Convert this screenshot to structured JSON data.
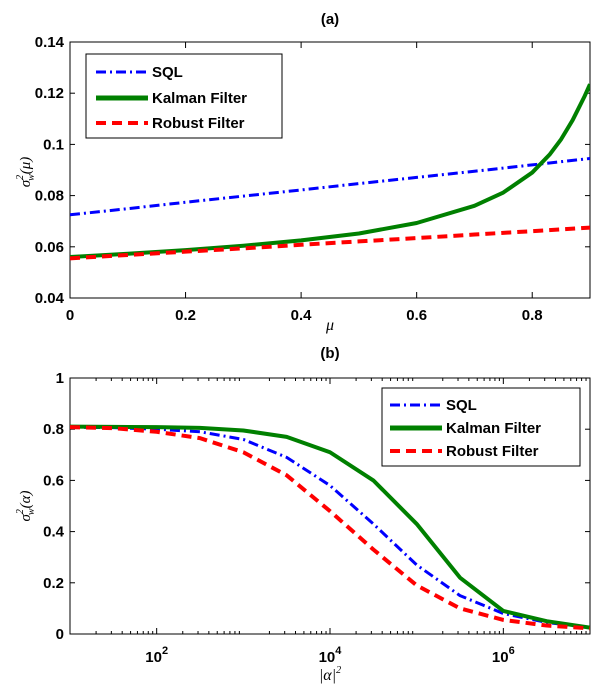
{
  "chart_data": [
    {
      "panel": "(a)",
      "type": "line",
      "title": "(a)",
      "xlabel": "μ",
      "ylabel": "σ_w^2(μ)",
      "xscale": "linear",
      "xlim": [
        0,
        0.9
      ],
      "ylim": [
        0.04,
        0.14
      ],
      "xticks": [
        0,
        0.2,
        0.4,
        0.6,
        0.8
      ],
      "xtick_labels": [
        "0",
        "0.2",
        "0.4",
        "0.6",
        "0.8"
      ],
      "yticks": [
        0.04,
        0.06,
        0.08,
        0.1,
        0.12,
        0.14
      ],
      "ytick_labels": [
        "0.04",
        "0.06",
        "0.08",
        "0.1",
        "0.12",
        "0.14"
      ],
      "grid": false,
      "legend_position": "top-left",
      "series": [
        {
          "name": "SQL",
          "color": "#0000ff",
          "style": "dash-dot",
          "x": [
            0,
            0.1,
            0.2,
            0.3,
            0.4,
            0.5,
            0.6,
            0.7,
            0.8,
            0.9
          ],
          "y": [
            0.0725,
            0.0749,
            0.0774,
            0.0798,
            0.0822,
            0.0847,
            0.0871,
            0.0895,
            0.092,
            0.0945
          ]
        },
        {
          "name": "Kalman Filter",
          "color": "#008000",
          "style": "solid",
          "x": [
            0,
            0.1,
            0.2,
            0.3,
            0.4,
            0.5,
            0.6,
            0.7,
            0.75,
            0.8,
            0.83,
            0.85,
            0.87,
            0.88,
            0.89,
            0.9
          ],
          "y": [
            0.056,
            0.0573,
            0.0587,
            0.0604,
            0.0625,
            0.0652,
            0.0693,
            0.076,
            0.0812,
            0.089,
            0.096,
            0.102,
            0.1095,
            0.114,
            0.1185,
            0.1235
          ]
        },
        {
          "name": "Robust Filter",
          "color": "#ff0000",
          "style": "dashed",
          "x": [
            0,
            0.1,
            0.2,
            0.3,
            0.4,
            0.5,
            0.6,
            0.7,
            0.8,
            0.9
          ],
          "y": [
            0.0555,
            0.0568,
            0.0581,
            0.0594,
            0.0608,
            0.0621,
            0.0634,
            0.0648,
            0.0661,
            0.0675
          ]
        }
      ]
    },
    {
      "panel": "(b)",
      "type": "line",
      "title": "(b)",
      "xlabel": "|α|^2",
      "ylabel": "σ_w^2(α)",
      "xscale": "log",
      "xlim": [
        10,
        10000000
      ],
      "ylim": [
        0,
        1
      ],
      "xticks": [
        100,
        10000,
        1000000
      ],
      "xtick_labels": [
        "10^2",
        "10^4",
        "10^6"
      ],
      "yticks": [
        0,
        0.2,
        0.4,
        0.6,
        0.8,
        1
      ],
      "ytick_labels": [
        "0",
        "0.2",
        "0.4",
        "0.6",
        "0.8",
        "1"
      ],
      "grid": false,
      "legend_position": "top-right",
      "series": [
        {
          "name": "SQL",
          "color": "#0000ff",
          "style": "dash-dot",
          "x": [
            10,
            31.6,
            100,
            316,
            1000,
            3162,
            10000,
            31623,
            100000,
            316228,
            1000000,
            3162278,
            10000000
          ],
          "y": [
            0.808,
            0.806,
            0.8,
            0.79,
            0.76,
            0.69,
            0.58,
            0.43,
            0.27,
            0.15,
            0.08,
            0.045,
            0.025
          ]
        },
        {
          "name": "Kalman Filter",
          "color": "#008000",
          "style": "solid",
          "x": [
            10,
            31.6,
            100,
            316,
            1000,
            3162,
            10000,
            31623,
            100000,
            316228,
            1000000,
            3162278,
            10000000
          ],
          "y": [
            0.81,
            0.809,
            0.808,
            0.805,
            0.795,
            0.77,
            0.71,
            0.6,
            0.43,
            0.22,
            0.09,
            0.05,
            0.025
          ]
        },
        {
          "name": "Robust Filter",
          "color": "#ff0000",
          "style": "dashed",
          "x": [
            10,
            31.6,
            100,
            316,
            1000,
            3162,
            10000,
            31623,
            100000,
            316228,
            1000000,
            3162278,
            10000000
          ],
          "y": [
            0.808,
            0.804,
            0.79,
            0.765,
            0.71,
            0.62,
            0.48,
            0.33,
            0.19,
            0.1,
            0.055,
            0.033,
            0.022
          ]
        }
      ]
    }
  ]
}
